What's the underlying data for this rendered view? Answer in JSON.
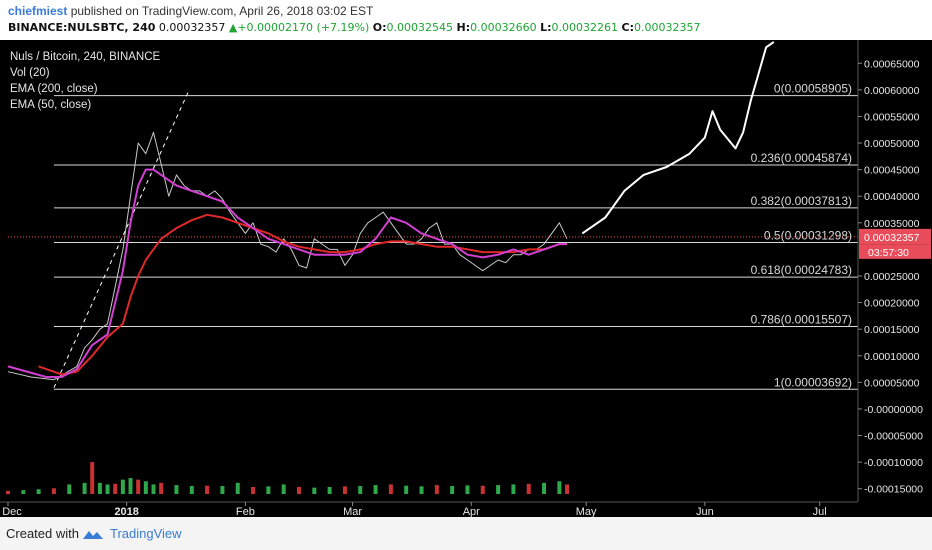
{
  "header": {
    "user": "chiefmiest",
    "published": "published on TradingView.com, April 26, 2018 03:02 EST",
    "symbol": "BINANCE:NULSBTC, 240",
    "last": "0.00032357",
    "change_arrow": "▲",
    "change": "+0.00002170 (+7.19%)",
    "o_label": "O:",
    "o_value": "0.00032545",
    "h_label": "H:",
    "h_value": "0.00032660",
    "l_label": "L:",
    "l_value": "0.00032261",
    "c_label": "C:",
    "c_value": "0.00032357"
  },
  "footer": {
    "created_with": "Created with",
    "brand": "TradingView"
  },
  "chart_data": {
    "type": "line",
    "title": "Nuls / Bitcoin, 240, BINANCE",
    "indicators": [
      "Vol (20)",
      "EMA (200, close)",
      "EMA (50, close)"
    ],
    "ylim": [
      -0.000175,
      0.00069
    ],
    "y_ticks": [
      {
        "v": 0.00065,
        "label": "0.00065000"
      },
      {
        "v": 0.0006,
        "label": "0.00060000"
      },
      {
        "v": 0.00055,
        "label": "0.00055000"
      },
      {
        "v": 0.0005,
        "label": "0.00050000"
      },
      {
        "v": 0.00045,
        "label": "0.00045000"
      },
      {
        "v": 0.0004,
        "label": "0.00040000"
      },
      {
        "v": 0.00035,
        "label": "0.00035000"
      },
      {
        "v": 0.00025,
        "label": "0.00025000"
      },
      {
        "v": 0.0002,
        "label": "0.00020000"
      },
      {
        "v": 0.00015,
        "label": "0.00015000"
      },
      {
        "v": 0.0001,
        "label": "0.00010000"
      },
      {
        "v": 5e-05,
        "label": "0.00005000"
      },
      {
        "v": 0.0,
        "label": "-0.00000000"
      },
      {
        "v": -5e-05,
        "label": "-0.00005000"
      },
      {
        "v": -0.0001,
        "label": "-0.00010000"
      },
      {
        "v": -0.00015,
        "label": "-0.00015000"
      }
    ],
    "x_ticks": [
      "Dec",
      "2018",
      "Feb",
      "Mar",
      "Apr",
      "May",
      "Jun",
      "Jul"
    ],
    "x_tick_days": [
      0,
      31,
      62,
      90,
      121,
      151,
      182,
      212
    ],
    "x_range_days": [
      0,
      222
    ],
    "price_label": "0.00032357",
    "countdown_label": "03:57:30",
    "current_price": 0.00032357,
    "fib_levels": [
      {
        "label": "0(0.00058905)",
        "value": 0.00058905
      },
      {
        "label": "0.236(0.00045874)",
        "value": 0.00045874
      },
      {
        "label": "0.382(0.00037813)",
        "value": 0.00037813
      },
      {
        "label": "0.5(0.00031298)",
        "value": 0.00031298
      },
      {
        "label": "0.618(0.00024783)",
        "value": 0.00024783
      },
      {
        "label": "0.786(0.00015507)",
        "value": 0.00015507
      },
      {
        "label": "1(0.00003692)",
        "value": 3.692e-05
      }
    ],
    "fib_start_day": 12,
    "price_series": {
      "x": [
        0,
        6,
        12,
        18,
        20,
        22,
        24,
        26,
        28,
        30,
        32,
        34,
        36,
        38,
        40,
        42,
        44,
        46,
        48,
        50,
        52,
        54,
        56,
        58,
        60,
        62,
        64,
        66,
        68,
        70,
        72,
        74,
        76,
        78,
        80,
        82,
        84,
        86,
        88,
        90,
        92,
        94,
        96,
        98,
        100,
        102,
        104,
        106,
        108,
        110,
        112,
        114,
        116,
        118,
        120,
        122,
        124,
        126,
        128,
        130,
        132,
        134,
        136,
        138,
        140,
        142,
        144,
        146
      ],
      "y": [
        7e-05,
        6e-05,
        5.5e-05,
        8e-05,
        0.000115,
        0.00013,
        0.00015,
        0.00016,
        0.00023,
        0.0003,
        0.0004,
        0.0005,
        0.00048,
        0.00052,
        0.00046,
        0.0004,
        0.00044,
        0.00042,
        0.00041,
        0.00041,
        0.0004,
        0.00041,
        0.000395,
        0.00037,
        0.00035,
        0.00033,
        0.00035,
        0.00031,
        0.000305,
        0.000295,
        0.00032,
        0.0003,
        0.00027,
        0.000265,
        0.00032,
        0.00031,
        0.0003,
        0.0003,
        0.00027,
        0.00029,
        0.00033,
        0.00035,
        0.00036,
        0.00037,
        0.00035,
        0.00033,
        0.00031,
        0.00031,
        0.00032,
        0.00034,
        0.00035,
        0.00031,
        0.00031,
        0.00029,
        0.00028,
        0.00027,
        0.00026,
        0.00027,
        0.00028,
        0.000275,
        0.00029,
        0.00029,
        0.0003,
        0.0003,
        0.00031,
        0.00033,
        0.00035,
        0.00032
      ]
    },
    "ema50": {
      "x": [
        0,
        10,
        14,
        18,
        22,
        26,
        30,
        32,
        34,
        36,
        38,
        40,
        44,
        48,
        52,
        56,
        60,
        64,
        68,
        72,
        76,
        80,
        84,
        88,
        92,
        96,
        100,
        104,
        108,
        112,
        116,
        120,
        124,
        128,
        132,
        136,
        140,
        144,
        146
      ],
      "y": [
        8e-05,
        6e-05,
        6e-05,
        7.5e-05,
        0.00012,
        0.00014,
        0.00026,
        0.00035,
        0.00042,
        0.00045,
        0.00045,
        0.00044,
        0.00042,
        0.00041,
        0.0004,
        0.00039,
        0.00036,
        0.00034,
        0.00032,
        0.00031,
        0.0003,
        0.00029,
        0.00029,
        0.00029,
        0.000295,
        0.00032,
        0.00036,
        0.00035,
        0.00033,
        0.00032,
        0.00031,
        0.00029,
        0.000285,
        0.00029,
        0.0003,
        0.00029,
        0.0003,
        0.00031,
        0.00031
      ]
    },
    "ema200": {
      "x": [
        8,
        14,
        18,
        22,
        26,
        30,
        32,
        34,
        36,
        38,
        40,
        44,
        48,
        52,
        56,
        60,
        64,
        68,
        72,
        76,
        80,
        84,
        88,
        92,
        96,
        100,
        104,
        108,
        112,
        116,
        120,
        124,
        128,
        132,
        136,
        140,
        144,
        146
      ],
      "y": [
        8e-05,
        6.5e-05,
        7e-05,
        0.0001,
        0.000135,
        0.00016,
        0.00021,
        0.00025,
        0.00028,
        0.0003,
        0.00032,
        0.00034,
        0.000355,
        0.000365,
        0.00036,
        0.00035,
        0.00034,
        0.00033,
        0.000315,
        0.000305,
        0.0003,
        0.000295,
        0.000295,
        0.0003,
        0.00031,
        0.000315,
        0.000315,
        0.00031,
        0.000305,
        0.000305,
        0.0003,
        0.000295,
        0.000295,
        0.000295,
        0.0003,
        0.0003,
        0.00031,
        0.00031
      ]
    },
    "trendline": {
      "x": [
        12,
        47
      ],
      "y": [
        4e-05,
        0.000595
      ]
    },
    "projection": {
      "x": [
        150,
        156,
        161,
        166,
        172,
        178,
        182,
        184,
        186,
        190,
        192,
        194,
        196,
        198,
        200
      ],
      "y": [
        0.00033,
        0.00036,
        0.00041,
        0.00044,
        0.000455,
        0.00048,
        0.00051,
        0.00056,
        0.000525,
        0.00049,
        0.00052,
        0.00058,
        0.00063,
        0.00068,
        0.00069
      ]
    },
    "volume": {
      "x": [
        0,
        4,
        8,
        12,
        16,
        20,
        22,
        24,
        26,
        28,
        30,
        32,
        34,
        36,
        38,
        40,
        44,
        48,
        52,
        56,
        60,
        64,
        68,
        72,
        76,
        80,
        84,
        88,
        92,
        96,
        100,
        104,
        108,
        112,
        116,
        120,
        124,
        128,
        132,
        136,
        140,
        144,
        146
      ],
      "v": [
        0.1,
        0.12,
        0.15,
        0.18,
        0.3,
        0.35,
        1.0,
        0.35,
        0.3,
        0.32,
        0.45,
        0.5,
        0.45,
        0.4,
        0.3,
        0.35,
        0.28,
        0.25,
        0.26,
        0.25,
        0.35,
        0.22,
        0.24,
        0.3,
        0.22,
        0.2,
        0.22,
        0.24,
        0.25,
        0.28,
        0.3,
        0.26,
        0.24,
        0.28,
        0.25,
        0.27,
        0.26,
        0.28,
        0.3,
        0.32,
        0.35,
        0.4,
        0.3
      ]
    },
    "colors": {
      "background": "#000000",
      "fib_line": "#d8d8d8",
      "ema50": "#d23fd2",
      "ema200": "#e02828",
      "price": "#c8c8c8",
      "price_marker": "#e84b5a",
      "volume_up": "#2ea84a",
      "volume_down": "#c83232",
      "axis_text": "#e6e6e6"
    }
  }
}
